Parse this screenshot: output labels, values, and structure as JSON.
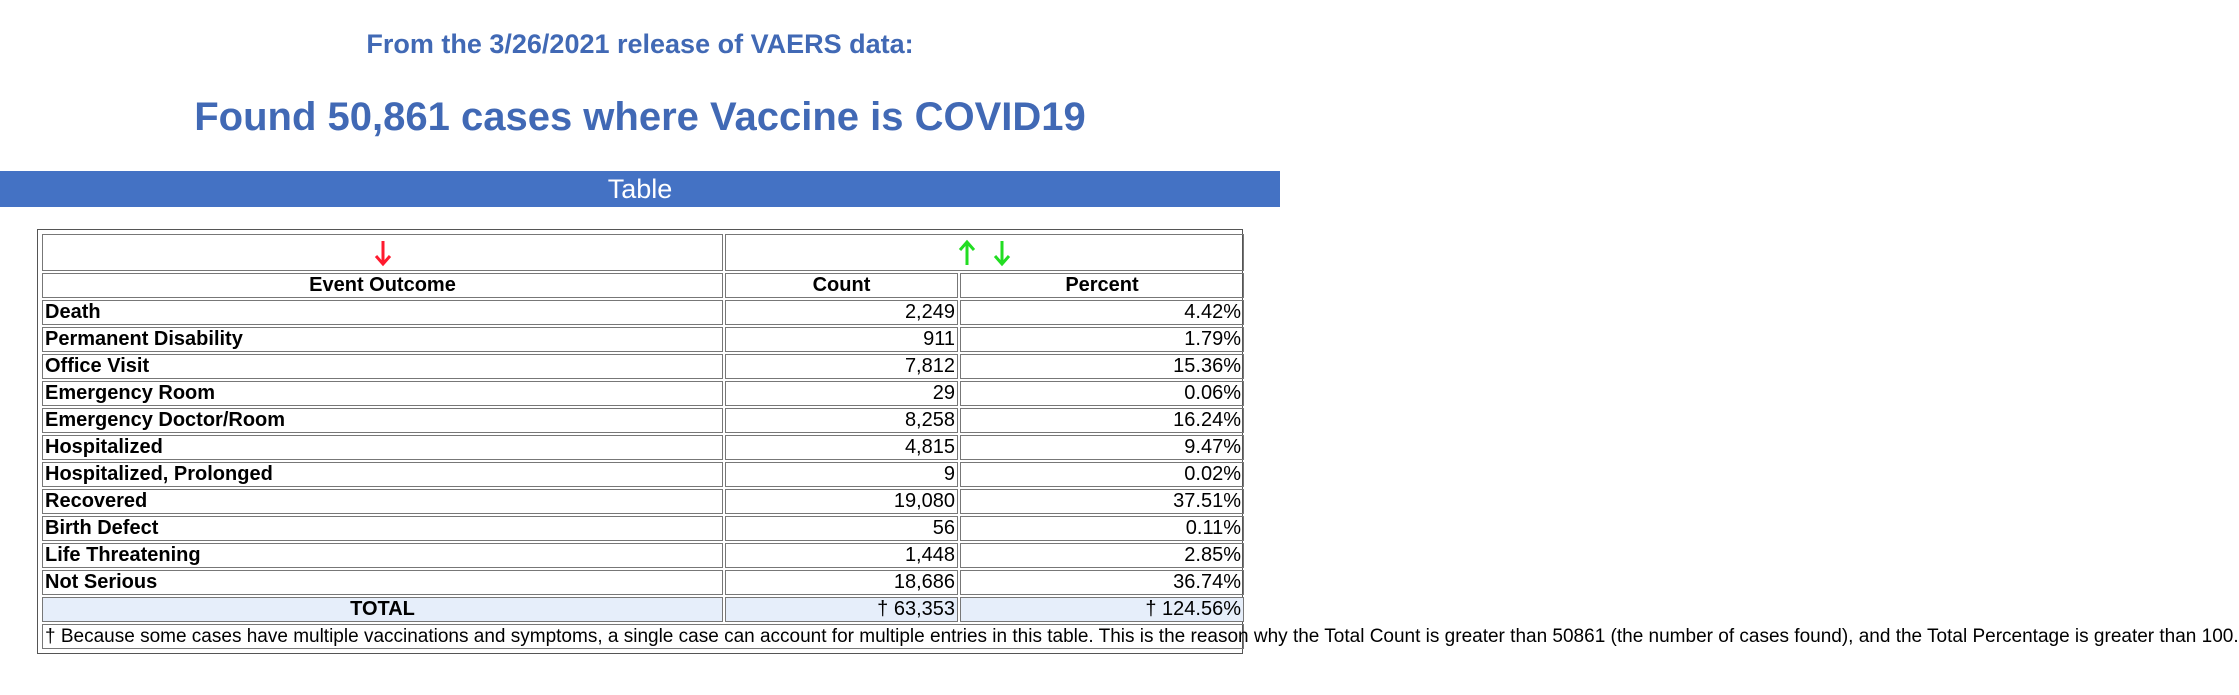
{
  "header": {
    "release_line": "From the 3/26/2021 release of VAERS data:",
    "found_line": "Found 50,861 cases where Vaccine is COVID19"
  },
  "section_bar": {
    "label": "Table"
  },
  "table": {
    "columns": [
      "Event Outcome",
      "Count",
      "Percent"
    ],
    "sort_icons": {
      "outcome": "down-arrow-icon",
      "count_up": "up-arrow-icon",
      "count_down": "down-arrow-icon"
    },
    "colors": {
      "red_arrow": "#ff1a2e",
      "green_arrow": "#22dd22",
      "accent": "#4472c4"
    },
    "rows": [
      {
        "label": "Death",
        "count": "2,249",
        "percent": "4.42%"
      },
      {
        "label": "Permanent Disability",
        "count": "911",
        "percent": "1.79%"
      },
      {
        "label": "Office Visit",
        "count": "7,812",
        "percent": "15.36%"
      },
      {
        "label": "Emergency Room",
        "count": "29",
        "percent": "0.06%"
      },
      {
        "label": "Emergency Doctor/Room",
        "count": "8,258",
        "percent": "16.24%"
      },
      {
        "label": "Hospitalized",
        "count": "4,815",
        "percent": "9.47%"
      },
      {
        "label": "Hospitalized, Prolonged",
        "count": "9",
        "percent": "0.02%"
      },
      {
        "label": "Recovered",
        "count": "19,080",
        "percent": "37.51%"
      },
      {
        "label": "Birth Defect",
        "count": "56",
        "percent": "0.11%"
      },
      {
        "label": "Life Threatening",
        "count": "1,448",
        "percent": "2.85%"
      },
      {
        "label": "Not Serious",
        "count": "18,686",
        "percent": "36.74%"
      }
    ],
    "total": {
      "label": "TOTAL",
      "count": "† 63,353",
      "percent": "† 124.56%"
    },
    "footnote": "† Because some cases have multiple vaccinations and symptoms, a single case can account for multiple entries in this table. This is the reason why the Total Count is greater than 50861 (the number of cases found), and the Total Percentage is greater than 100."
  }
}
